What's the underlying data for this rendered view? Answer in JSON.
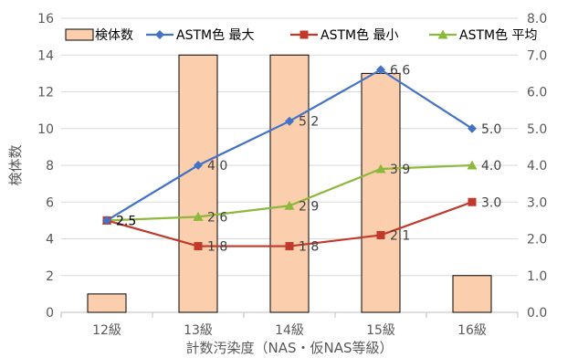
{
  "chart_data": {
    "type": "bar",
    "title": "",
    "xlabel": "計数汚染度（NAS・仮NAS等級）",
    "ylabel": "検体数",
    "y2label": "",
    "categories": [
      "12級",
      "13級",
      "14級",
      "15級",
      "16級"
    ],
    "ylim": [
      0,
      16
    ],
    "yticks": [
      "0",
      "2",
      "4",
      "6",
      "8",
      "10",
      "12",
      "14",
      "16"
    ],
    "y2lim": [
      0,
      8
    ],
    "y2ticks": [
      "0.0",
      "1.0",
      "2.0",
      "3.0",
      "4.0",
      "5.0",
      "6.0",
      "7.0",
      "8.0"
    ],
    "grid": true,
    "legend_position": "top",
    "bars": {
      "name": "検体数",
      "values": [
        1,
        14,
        14,
        13,
        2
      ],
      "fill": "#FBCFAE",
      "stroke": "#000000"
    },
    "series": [
      {
        "name": "ASTM色 最大",
        "type": "line",
        "axis": "right",
        "color": "#4472C4",
        "marker": "diamond",
        "values": [
          2.5,
          4.0,
          5.2,
          6.6,
          5.0
        ],
        "labels": [
          "",
          "4.0",
          "5.2",
          "6.6",
          "5.0"
        ]
      },
      {
        "name": "ASTM色 最小",
        "type": "line",
        "axis": "right",
        "color": "#C0392B",
        "marker": "square",
        "values": [
          2.5,
          1.8,
          1.8,
          2.1,
          3.0
        ],
        "labels": [
          "2.5",
          "1.8",
          "1.8",
          "2.1",
          "3.0"
        ]
      },
      {
        "name": "ASTM色 平均",
        "type": "line",
        "axis": "right",
        "color": "#8DB83C",
        "marker": "triangle",
        "values": [
          2.5,
          2.6,
          2.9,
          3.9,
          4.0
        ],
        "labels": [
          "",
          "2.6",
          "2.9",
          "3.9",
          "4.0"
        ]
      }
    ]
  }
}
